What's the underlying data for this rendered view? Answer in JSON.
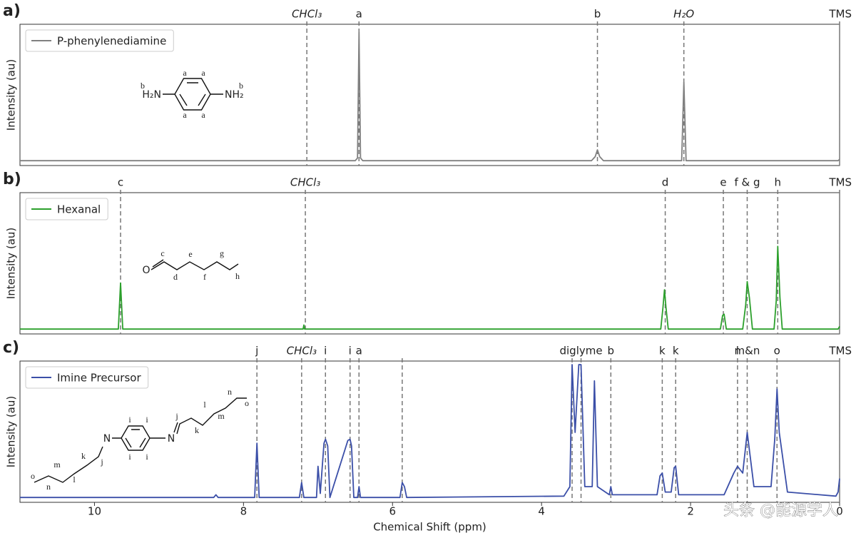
{
  "chart_data": [
    {
      "type": "line",
      "panel_label": "a)",
      "ylabel": "Intensity (au)",
      "xlim": [
        11,
        0
      ],
      "ylim": [
        0,
        1
      ],
      "series": [
        {
          "name": "P-phenylenediamine",
          "color": "#808080",
          "x": [
            11,
            6.5,
            6.47,
            6.45,
            6.43,
            6.4,
            3.33,
            3.28,
            3.25,
            3.22,
            3.17,
            2.12,
            2.09,
            2.06,
            0.02,
            0
          ],
          "values": [
            0.02,
            0.02,
            0.04,
            0.97,
            0.04,
            0.02,
            0.02,
            0.05,
            0.1,
            0.05,
            0.02,
            0.02,
            0.6,
            0.02,
            0.02,
            0.03
          ]
        }
      ],
      "reference_lines": [
        {
          "label": "CHCl₃",
          "x": 7.15,
          "italic": true
        },
        {
          "label": "a",
          "x": 6.45
        },
        {
          "label": "b",
          "x": 3.25
        },
        {
          "label": "H₂O",
          "x": 2.09,
          "italic": true
        },
        {
          "label": "TMS",
          "x": 0
        }
      ],
      "structure_labels": [
        "a",
        "a",
        "a",
        "a",
        "b",
        "b",
        "H₂N",
        "NH₂"
      ]
    },
    {
      "type": "line",
      "panel_label": "b)",
      "ylabel": "Intensity (au)",
      "xlim": [
        11,
        0
      ],
      "ylim": [
        0,
        1
      ],
      "series": [
        {
          "name": "Hexanal",
          "color": "#2ca02c",
          "x": [
            11,
            9.68,
            9.65,
            9.62,
            7.2,
            7.19,
            7.18,
            2.4,
            2.37,
            2.35,
            2.33,
            2.3,
            1.6,
            1.57,
            1.55,
            1.52,
            1.3,
            1.26,
            1.24,
            1.21,
            1.17,
            0.88,
            0.85,
            0.83,
            0.8,
            0.77,
            0.02,
            0
          ],
          "values": [
            0.02,
            0.02,
            0.36,
            0.02,
            0.02,
            0.05,
            0.02,
            0.02,
            0.18,
            0.31,
            0.18,
            0.02,
            0.02,
            0.12,
            0.13,
            0.02,
            0.02,
            0.2,
            0.37,
            0.25,
            0.02,
            0.02,
            0.23,
            0.63,
            0.25,
            0.02,
            0.02,
            0.04
          ]
        }
      ],
      "reference_lines": [
        {
          "label": "c",
          "x": 9.65
        },
        {
          "label": "CHCl₃",
          "x": 7.17,
          "italic": true
        },
        {
          "label": "d",
          "x": 2.34
        },
        {
          "label": "e",
          "x": 1.56
        },
        {
          "label": "f & g",
          "x": 1.24
        },
        {
          "label": "h",
          "x": 0.83
        },
        {
          "label": "TMS",
          "x": 0
        }
      ],
      "structure_labels": [
        "O",
        "c",
        "d",
        "e",
        "f",
        "g",
        "h"
      ]
    },
    {
      "type": "line",
      "panel_label": "c)",
      "ylabel": "Intensity (au)",
      "xlabel": "Chemical Shift (ppm)",
      "xlim": [
        11,
        0
      ],
      "ylim": [
        0,
        1
      ],
      "xticks": [
        10,
        8,
        6,
        4,
        2,
        0
      ],
      "series": [
        {
          "name": "Imine Precursor",
          "color": "#3b4fa8",
          "x": [
            11,
            8.4,
            8.37,
            8.34,
            7.85,
            7.82,
            7.79,
            7.25,
            7.22,
            7.19,
            7.02,
            7.0,
            6.97,
            6.92,
            6.9,
            6.87,
            6.84,
            6.6,
            6.57,
            6.55,
            6.52,
            6.47,
            6.45,
            6.43,
            5.9,
            5.87,
            5.84,
            5.81,
            3.7,
            3.62,
            3.59,
            3.55,
            3.5,
            3.47,
            3.42,
            3.32,
            3.29,
            3.25,
            3.09,
            3.07,
            3.05,
            2.45,
            2.41,
            2.38,
            2.34,
            2.26,
            2.22,
            2.2,
            2.16,
            1.55,
            1.42,
            1.37,
            1.3,
            1.24,
            1.15,
            0.92,
            0.87,
            0.84,
            0.81,
            0.7,
            0.05,
            0.02,
            0
          ],
          "values": [
            0.02,
            0.02,
            0.04,
            0.02,
            0.02,
            0.42,
            0.02,
            0.02,
            0.13,
            0.02,
            0.02,
            0.25,
            0.05,
            0.42,
            0.45,
            0.4,
            0.02,
            0.44,
            0.45,
            0.4,
            0.02,
            0.02,
            0.1,
            0.02,
            0.02,
            0.13,
            0.1,
            0.02,
            0.03,
            0.1,
            1.0,
            0.5,
            1.0,
            1.0,
            0.1,
            0.1,
            0.88,
            0.1,
            0.04,
            0.1,
            0.04,
            0.04,
            0.18,
            0.2,
            0.06,
            0.06,
            0.24,
            0.25,
            0.04,
            0.04,
            0.2,
            0.25,
            0.2,
            0.5,
            0.1,
            0.1,
            0.45,
            0.82,
            0.5,
            0.06,
            0.03,
            0.06,
            0.16
          ]
        }
      ],
      "reference_lines": [
        {
          "label": "j",
          "x": 7.82
        },
        {
          "label": "CHCl₃",
          "x": 7.22,
          "italic": true
        },
        {
          "label": "i",
          "x": 6.9
        },
        {
          "label": "i",
          "x": 6.57
        },
        {
          "label": "a",
          "x": 6.45
        },
        {
          "x": 5.87
        },
        {
          "x": 3.59
        },
        {
          "label": "diglyme",
          "x": 3.47
        },
        {
          "label": "b",
          "x": 3.07
        },
        {
          "label": "k",
          "x": 2.38
        },
        {
          "label": "k",
          "x": 2.2
        },
        {
          "label": "l",
          "x": 1.37
        },
        {
          "label": "m&n",
          "x": 1.24
        },
        {
          "label": "o",
          "x": 0.84
        },
        {
          "label": "TMS",
          "x": 0
        }
      ],
      "structure_labels": [
        "o",
        "n",
        "m",
        "l",
        "k",
        "j",
        "N",
        "i",
        "i",
        "i",
        "i",
        "N",
        "j",
        "k",
        "l",
        "m",
        "n",
        "o"
      ],
      "watermark": "头条 @能源学人"
    }
  ]
}
